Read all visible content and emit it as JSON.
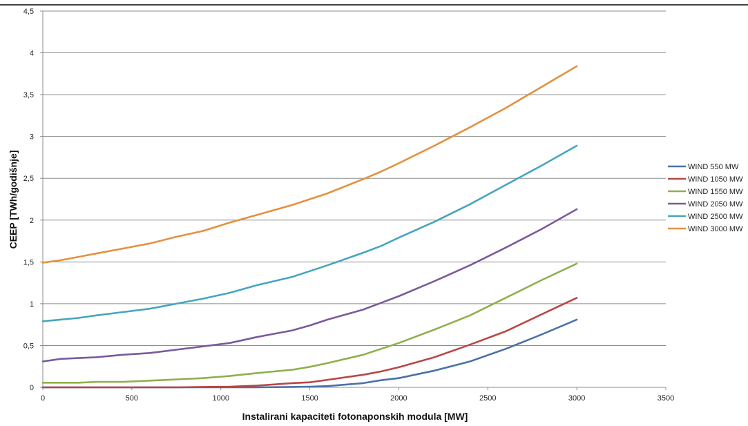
{
  "chart_data": {
    "type": "line",
    "title": "",
    "xlabel": "Instalirani kapaciteti fotonaponskih modula [MW]",
    "ylabel": "CEEP [TWh/godišnje]",
    "xlim": [
      0,
      3500
    ],
    "ylim": [
      0,
      4.5
    ],
    "x_ticks": [
      0,
      500,
      1000,
      1500,
      2000,
      2500,
      3000,
      3500
    ],
    "x_tick_labels": [
      "0",
      "500",
      "1000",
      "1500",
      "2000",
      "2500",
      "3000",
      "3500"
    ],
    "y_ticks": [
      0,
      0.5,
      1,
      1.5,
      2,
      2.5,
      3,
      3.5,
      4,
      4.5
    ],
    "y_tick_labels": [
      "0",
      "0,5",
      "1",
      "1,5",
      "2",
      "2,5",
      "3",
      "3,5",
      "4",
      "4,5"
    ],
    "grid": "horizontal",
    "legend_position": "right",
    "x": [
      0,
      100,
      200,
      300,
      450,
      600,
      750,
      900,
      1050,
      1200,
      1400,
      1500,
      1600,
      1800,
      1900,
      2000,
      2200,
      2400,
      2600,
      2800,
      3000
    ],
    "series": [
      {
        "name": "WIND 550 MW",
        "color": "#4a72a5",
        "values": [
          0,
          0,
          0,
          0,
          0,
          0,
          0,
          0,
          0,
          0,
          0.005,
          0.008,
          0.015,
          0.05,
          0.085,
          0.11,
          0.2,
          0.31,
          0.46,
          0.63,
          0.81
        ]
      },
      {
        "name": "WIND 1050 MW",
        "color": "#b84744",
        "values": [
          0,
          0,
          0,
          0,
          0,
          0,
          0,
          0.005,
          0.008,
          0.02,
          0.05,
          0.06,
          0.09,
          0.15,
          0.19,
          0.24,
          0.36,
          0.51,
          0.67,
          0.87,
          1.07
        ]
      },
      {
        "name": "WIND 1550 MW",
        "color": "#8db04c",
        "values": [
          0.055,
          0.055,
          0.055,
          0.065,
          0.065,
          0.08,
          0.095,
          0.11,
          0.135,
          0.17,
          0.21,
          0.245,
          0.29,
          0.39,
          0.46,
          0.53,
          0.69,
          0.86,
          1.07,
          1.28,
          1.48
        ]
      },
      {
        "name": "WIND 2050 MW",
        "color": "#7a5a9c",
        "values": [
          0.31,
          0.34,
          0.35,
          0.36,
          0.39,
          0.41,
          0.45,
          0.49,
          0.53,
          0.6,
          0.68,
          0.74,
          0.81,
          0.93,
          1.01,
          1.09,
          1.27,
          1.46,
          1.67,
          1.89,
          2.13
        ]
      },
      {
        "name": "WIND 2500 MW",
        "color": "#46a5bf",
        "values": [
          0.79,
          0.81,
          0.83,
          0.86,
          0.9,
          0.94,
          1.0,
          1.06,
          1.13,
          1.22,
          1.32,
          1.39,
          1.46,
          1.61,
          1.69,
          1.79,
          1.98,
          2.19,
          2.42,
          2.65,
          2.89
        ]
      },
      {
        "name": "WIND 3000 MW",
        "color": "#e3913f",
        "values": [
          1.49,
          1.52,
          1.56,
          1.6,
          1.66,
          1.72,
          1.8,
          1.87,
          1.97,
          2.06,
          2.18,
          2.25,
          2.32,
          2.49,
          2.58,
          2.68,
          2.89,
          3.11,
          3.34,
          3.59,
          3.84
        ]
      }
    ]
  }
}
